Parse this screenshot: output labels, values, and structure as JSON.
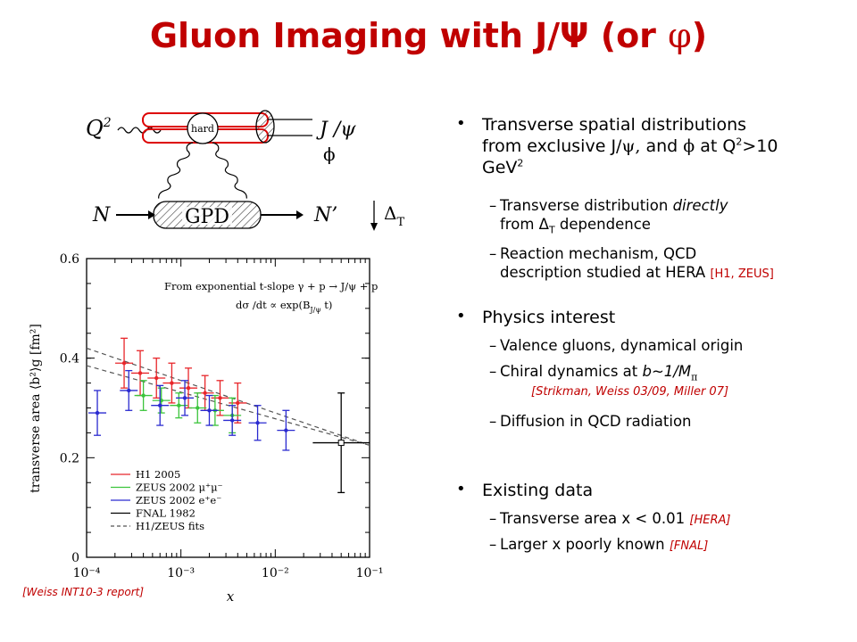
{
  "title": "Gluon Imaging with J/Ψ (or ",
  "title_phi": "φ",
  "title_close": ")",
  "diagram": {
    "q2": "Q",
    "q2_sup": "2",
    "jpsi": "J /ψ",
    "phi": "ϕ",
    "hard": "hard",
    "n_in": "N",
    "gpd": "GPD",
    "n_out": "N’",
    "delta": "Δ",
    "delta_sub": "T"
  },
  "bullets": {
    "b1_line1": "Transverse spatial distributions",
    "b1_line2a": "from exclusive J/",
    "b1_psi": "ψ,",
    "b1_line2b": " and ",
    "b1_phi": "ϕ",
    "b1_line2c": " at Q",
    "b1_q_sup": "2",
    "b1_line2d": ">10",
    "b1_line3": "GeV",
    "b1_gev_sup": "2",
    "s1_a": "Transverse distribution ",
    "s1_em": "directly",
    "s1_b": "from Δ",
    "s1_sub": "T",
    "s1_c": " dependence",
    "s2_a": "Reaction mechanism, QCD",
    "s2_b": "description studied at HERA ",
    "s2_ref": "[H1, ZEUS]",
    "b2": "Physics interest",
    "s3": "Valence gluons, dynamical origin",
    "s4_a": "Chiral dynamics at ",
    "s4_em": "b~1/M",
    "s4_sub": "π",
    "s4_ref": "[Strikman, Weiss 03/09, Miller 07]",
    "s5": "Diffusion in QCD radiation",
    "b3": "Existing data",
    "s6_a": "Transverse area x < 0.01 ",
    "s6_ref": "[HERA]",
    "s7_a": "Larger x poorly known ",
    "s7_ref": "[FNAL]"
  },
  "credit": "[Weiss INT10-3 report]",
  "chart_data": {
    "type": "scatter",
    "xscale": "log",
    "xlim": [
      0.0001,
      0.1
    ],
    "ylim": [
      0,
      0.6
    ],
    "xlabel": "x",
    "ylabel": "transverse area ⟨b²⟩g [fm²]",
    "xticks": [
      "10⁻⁴",
      "10⁻³",
      "10⁻²",
      "10⁻¹"
    ],
    "yticks": [
      "0",
      "0.2",
      "0.4",
      "0.6"
    ],
    "annotation_line1": "From exponential  t-slope  γ + p → J/ψ + p",
    "annotation_line2": "dσ /dt   ∝   exp(B",
    "annotation_line2_sub": "J/ψ",
    "annotation_line2_end": " t)",
    "legend_position": "bottom-left",
    "series": [
      {
        "name": "H1 2005",
        "color": "#e8262a",
        "marker": "+",
        "points": [
          [
            0.00025,
            0.39,
            0.05
          ],
          [
            0.00037,
            0.37,
            0.045
          ],
          [
            0.00055,
            0.36,
            0.04
          ],
          [
            0.0008,
            0.35,
            0.04
          ],
          [
            0.0012,
            0.34,
            0.04
          ],
          [
            0.0018,
            0.33,
            0.035
          ],
          [
            0.0026,
            0.32,
            0.035
          ],
          [
            0.004,
            0.31,
            0.04
          ]
        ]
      },
      {
        "name": "ZEUS 2002 μ⁺μ⁻",
        "color": "#3cc43c",
        "marker": "×",
        "points": [
          [
            0.0004,
            0.325,
            0.03
          ],
          [
            0.00062,
            0.315,
            0.025
          ],
          [
            0.00095,
            0.305,
            0.025
          ],
          [
            0.0015,
            0.3,
            0.03
          ],
          [
            0.0023,
            0.295,
            0.03
          ],
          [
            0.0035,
            0.285,
            0.035
          ]
        ]
      },
      {
        "name": "ZEUS 2002 e⁺e⁻",
        "color": "#2a2ad0",
        "marker": "*",
        "points": [
          [
            0.00013,
            0.29,
            0.045
          ],
          [
            0.00028,
            0.335,
            0.04
          ],
          [
            0.0006,
            0.305,
            0.04
          ],
          [
            0.0011,
            0.32,
            0.035
          ],
          [
            0.002,
            0.295,
            0.03
          ],
          [
            0.0035,
            0.275,
            0.03
          ],
          [
            0.0065,
            0.27,
            0.035
          ],
          [
            0.013,
            0.255,
            0.04
          ]
        ]
      },
      {
        "name": "FNAL 1982",
        "color": "#000000",
        "marker": "□",
        "points": [
          [
            0.05,
            0.23,
            0.1
          ]
        ]
      }
    ],
    "fit_name": "H1/ZEUS fits",
    "fit_color": "#555555",
    "fit_lines": [
      [
        [
          0.0001,
          0.42
        ],
        [
          0.1,
          0.225
        ]
      ],
      [
        [
          0.0001,
          0.385
        ],
        [
          0.1,
          0.225
        ]
      ]
    ]
  }
}
